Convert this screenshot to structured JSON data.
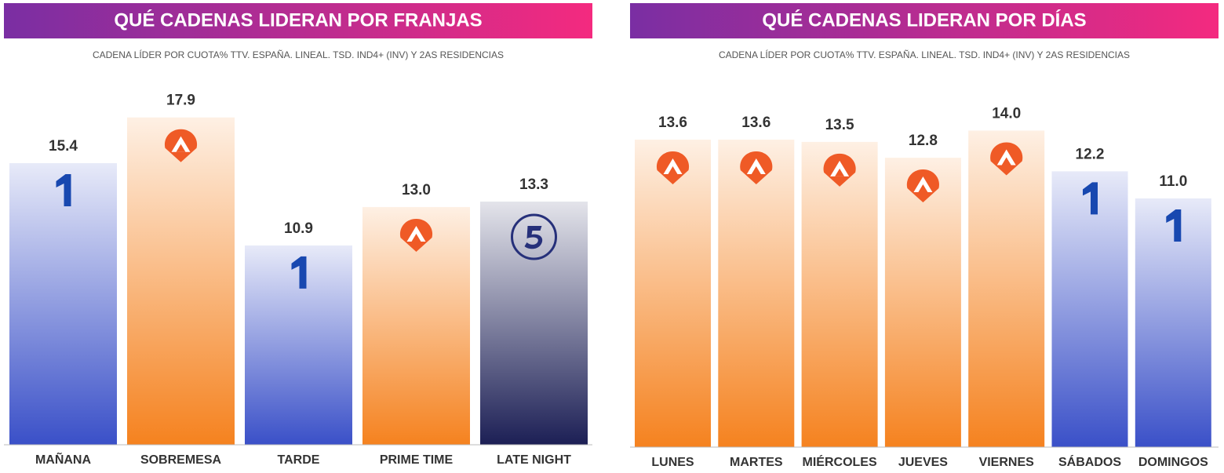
{
  "chart_data": [
    {
      "type": "bar",
      "title": "QUÉ CADENAS LIDERAN POR FRANJAS",
      "subtitle": "CADENA LÍDER POR CUOTA% TTV. ESPAÑA. LINEAL. TSD. IND4+ (INV) Y 2AS RESIDENCIAS",
      "categories": [
        "MAÑANA",
        "SOBREMESA",
        "TARDE",
        "PRIME TIME",
        "LATE NIGHT"
      ],
      "values": [
        15.4,
        17.9,
        10.9,
        13.0,
        13.3
      ],
      "value_labels": [
        "15.4",
        "17.9",
        "10.9",
        "13.0",
        "13.3"
      ],
      "colors": [
        "#3a50c8",
        "#f5821f",
        "#3a50c8",
        "#f5821f",
        "#1c1f55"
      ]
    },
    {
      "type": "bar",
      "title": "QUÉ CADENAS LIDERAN POR DÍAS",
      "subtitle": "CADENA LÍDER POR CUOTA% TTV. ESPAÑA. LINEAL. TSD. IND4+ (INV) Y 2AS RESIDENCIAS",
      "categories": [
        "LUNES",
        "MARTES",
        "MIÉRCOLES",
        "JUEVES",
        "VIERNES",
        "SÁBADOS",
        "DOMINGOS"
      ],
      "values": [
        13.6,
        13.6,
        13.5,
        12.8,
        14.0,
        12.2,
        11.0
      ],
      "value_labels": [
        "13.6",
        "13.6",
        "13.5",
        "12.8",
        "14.0",
        "12.2",
        "11.0"
      ],
      "colors": [
        "#f5821f",
        "#f5821f",
        "#f5821f",
        "#f5821f",
        "#f5821f",
        "#3a50c8",
        "#3a50c8"
      ]
    }
  ]
}
